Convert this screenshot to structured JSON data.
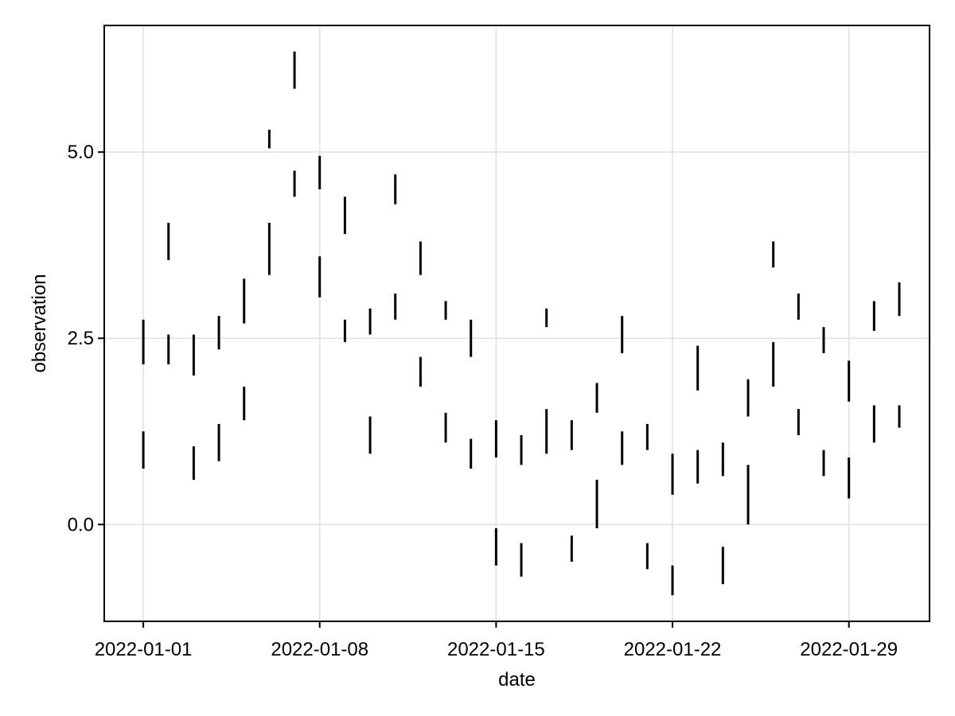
{
  "chart_data": {
    "type": "rangebar",
    "xlabel": "date",
    "ylabel": "observation",
    "x_ticks": [
      "2022-01-01",
      "2022-01-08",
      "2022-01-15",
      "2022-01-22",
      "2022-01-29"
    ],
    "y_ticks": [
      "0.0",
      "2.5",
      "5.0"
    ],
    "y_tick_values": [
      0.0,
      2.5,
      5.0
    ],
    "xlim": [
      "2021-12-30",
      "2022-01-31"
    ],
    "ylim": [
      -1.3,
      6.7
    ],
    "grid": true,
    "colors": {
      "bar": "#000000",
      "grid": "#e0e0e0",
      "frame": "#000000"
    },
    "series": [
      {
        "ranges": [
          {
            "x": "2022-01-01",
            "low": 2.15,
            "high": 2.75
          },
          {
            "x": "2022-01-01",
            "low": 0.75,
            "high": 1.25
          },
          {
            "x": "2022-01-02",
            "low": 3.55,
            "high": 4.05
          },
          {
            "x": "2022-01-02",
            "low": 2.15,
            "high": 2.55
          },
          {
            "x": "2022-01-03",
            "low": 2.0,
            "high": 2.55
          },
          {
            "x": "2022-01-03",
            "low": 0.6,
            "high": 1.05
          },
          {
            "x": "2022-01-04",
            "low": 2.35,
            "high": 2.8
          },
          {
            "x": "2022-01-04",
            "low": 0.85,
            "high": 1.35
          },
          {
            "x": "2022-01-05",
            "low": 2.7,
            "high": 3.3
          },
          {
            "x": "2022-01-05",
            "low": 1.4,
            "high": 1.85
          },
          {
            "x": "2022-01-06",
            "low": 5.05,
            "high": 5.3
          },
          {
            "x": "2022-01-06",
            "low": 3.35,
            "high": 4.05
          },
          {
            "x": "2022-01-07",
            "low": 5.85,
            "high": 6.35
          },
          {
            "x": "2022-01-07",
            "low": 4.4,
            "high": 4.75
          },
          {
            "x": "2022-01-08",
            "low": 4.5,
            "high": 4.95
          },
          {
            "x": "2022-01-08",
            "low": 3.05,
            "high": 3.6
          },
          {
            "x": "2022-01-09",
            "low": 3.9,
            "high": 4.4
          },
          {
            "x": "2022-01-09",
            "low": 2.45,
            "high": 2.75
          },
          {
            "x": "2022-01-10",
            "low": 2.55,
            "high": 2.9
          },
          {
            "x": "2022-01-10",
            "low": 0.95,
            "high": 1.45
          },
          {
            "x": "2022-01-11",
            "low": 4.3,
            "high": 4.7
          },
          {
            "x": "2022-01-11",
            "low": 2.75,
            "high": 3.1
          },
          {
            "x": "2022-01-12",
            "low": 3.35,
            "high": 3.8
          },
          {
            "x": "2022-01-12",
            "low": 1.85,
            "high": 2.25
          },
          {
            "x": "2022-01-13",
            "low": 2.75,
            "high": 3.0
          },
          {
            "x": "2022-01-13",
            "low": 1.1,
            "high": 1.5
          },
          {
            "x": "2022-01-14",
            "low": 2.25,
            "high": 2.75
          },
          {
            "x": "2022-01-14",
            "low": 0.75,
            "high": 1.15
          },
          {
            "x": "2022-01-15",
            "low": 0.9,
            "high": 1.4
          },
          {
            "x": "2022-01-15",
            "low": -0.55,
            "high": -0.05
          },
          {
            "x": "2022-01-16",
            "low": 0.8,
            "high": 1.2
          },
          {
            "x": "2022-01-16",
            "low": -0.7,
            "high": -0.25
          },
          {
            "x": "2022-01-17",
            "low": 2.65,
            "high": 2.9
          },
          {
            "x": "2022-01-17",
            "low": 0.95,
            "high": 1.55
          },
          {
            "x": "2022-01-18",
            "low": 1.0,
            "high": 1.4
          },
          {
            "x": "2022-01-18",
            "low": -0.5,
            "high": -0.15
          },
          {
            "x": "2022-01-19",
            "low": 1.5,
            "high": 1.9
          },
          {
            "x": "2022-01-19",
            "low": -0.05,
            "high": 0.6
          },
          {
            "x": "2022-01-20",
            "low": 2.3,
            "high": 2.8
          },
          {
            "x": "2022-01-20",
            "low": 0.8,
            "high": 1.25
          },
          {
            "x": "2022-01-21",
            "low": 1.0,
            "high": 1.35
          },
          {
            "x": "2022-01-21",
            "low": -0.6,
            "high": -0.25
          },
          {
            "x": "2022-01-22",
            "low": 0.4,
            "high": 0.95
          },
          {
            "x": "2022-01-22",
            "low": -0.95,
            "high": -0.55
          },
          {
            "x": "2022-01-23",
            "low": 1.8,
            "high": 2.4
          },
          {
            "x": "2022-01-23",
            "low": 0.55,
            "high": 1.0
          },
          {
            "x": "2022-01-24",
            "low": 0.65,
            "high": 1.1
          },
          {
            "x": "2022-01-24",
            "low": -0.8,
            "high": -0.3
          },
          {
            "x": "2022-01-25",
            "low": 1.45,
            "high": 1.95
          },
          {
            "x": "2022-01-25",
            "low": 0.0,
            "high": 0.8
          },
          {
            "x": "2022-01-26",
            "low": 3.45,
            "high": 3.8
          },
          {
            "x": "2022-01-26",
            "low": 1.85,
            "high": 2.45
          },
          {
            "x": "2022-01-27",
            "low": 2.75,
            "high": 3.1
          },
          {
            "x": "2022-01-27",
            "low": 1.2,
            "high": 1.55
          },
          {
            "x": "2022-01-28",
            "low": 2.3,
            "high": 2.65
          },
          {
            "x": "2022-01-28",
            "low": 0.65,
            "high": 1.0
          },
          {
            "x": "2022-01-29",
            "low": 1.65,
            "high": 2.2
          },
          {
            "x": "2022-01-29",
            "low": 0.35,
            "high": 0.9
          },
          {
            "x": "2022-01-30",
            "low": 2.6,
            "high": 3.0
          },
          {
            "x": "2022-01-30",
            "low": 1.1,
            "high": 1.6
          },
          {
            "x": "2022-01-31",
            "low": 2.8,
            "high": 3.25
          },
          {
            "x": "2022-01-31",
            "low": 1.3,
            "high": 1.6
          }
        ]
      }
    ]
  }
}
